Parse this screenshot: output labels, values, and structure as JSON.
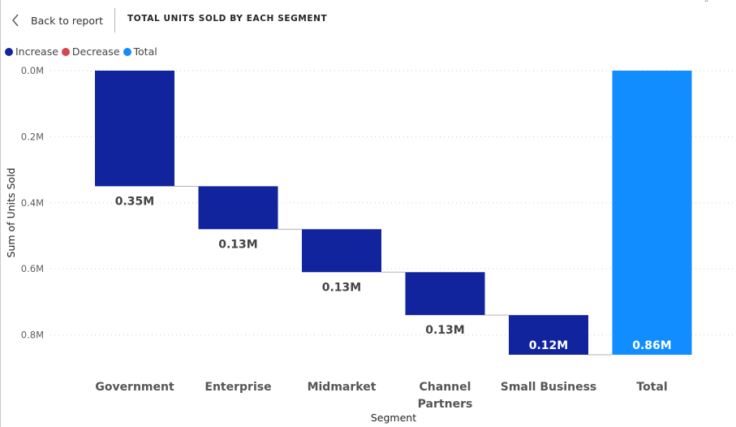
{
  "header": {
    "back_label": "Back to report",
    "title": "TOTAL UNITS SOLD BY EACH SEGMENT",
    "back_icon": "chevron-left-icon"
  },
  "legend": {
    "items": [
      {
        "label": "Increase",
        "color": "#12239e"
      },
      {
        "label": "Decrease",
        "color": "#d64550"
      },
      {
        "label": "Total",
        "color": "#118dff"
      }
    ]
  },
  "chart_data": {
    "type": "waterfall",
    "xlabel": "Segment",
    "ylabel": "Sum of Units Sold",
    "y_axis_direction": "reversed (0 at top)",
    "ylim": [
      0,
      0.86
    ],
    "y_ticks": [
      "0.0M",
      "0.2M",
      "0.4M",
      "0.6M",
      "0.8M"
    ],
    "y_tick_values": [
      0,
      0.2,
      0.4,
      0.6,
      0.8
    ],
    "grid": true,
    "legend_position": "top-left",
    "categories": [
      {
        "label": [
          "Government"
        ],
        "value": 0.35,
        "data_label": "0.35M",
        "kind": "increase"
      },
      {
        "label": [
          "Enterprise"
        ],
        "value": 0.13,
        "data_label": "0.13M",
        "kind": "increase"
      },
      {
        "label": [
          "Midmarket"
        ],
        "value": 0.13,
        "data_label": "0.13M",
        "kind": "increase"
      },
      {
        "label": [
          "Channel",
          "Partners"
        ],
        "value": 0.13,
        "data_label": "0.13M",
        "kind": "increase"
      },
      {
        "label": [
          "Small Business"
        ],
        "value": 0.12,
        "data_label": "0.12M",
        "kind": "increase"
      },
      {
        "label": [
          "Total"
        ],
        "value": 0.86,
        "data_label": "0.86M",
        "kind": "total"
      }
    ],
    "colors": {
      "increase": "#12239e",
      "decrease": "#d64550",
      "total": "#118dff",
      "connector": "#b3b3b3",
      "grid": "#cfcfcf"
    }
  }
}
